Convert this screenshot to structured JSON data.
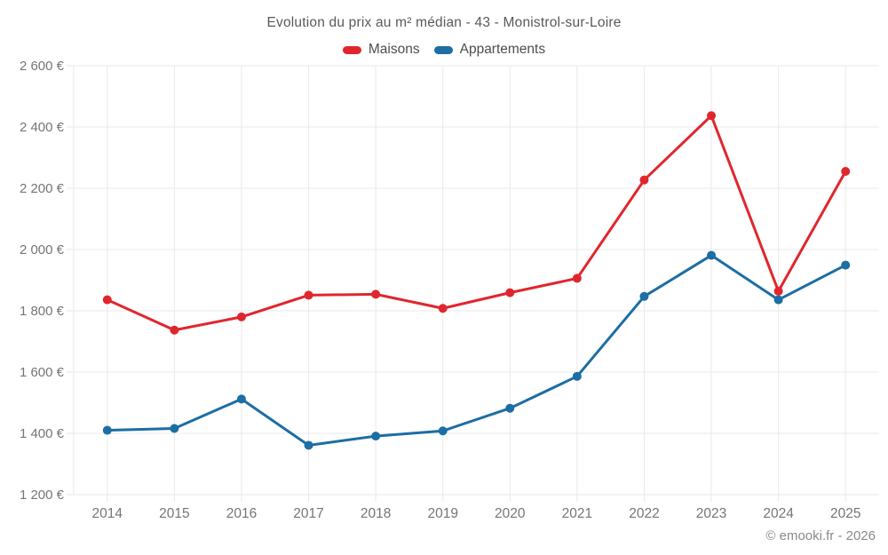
{
  "header": {
    "title": "Evolution du prix au m² médian - 43 - Monistrol-sur-Loire"
  },
  "footer": {
    "credit": "© emooki.fr - 2026"
  },
  "colors": {
    "background": "#ffffff",
    "grid": "#e9e9e9",
    "axis_text": "#757575",
    "title_text": "#595959",
    "legend_text": "#4d4d4d",
    "maisons_red": "#e0262d",
    "appartements_blue": "#1c6ea4"
  },
  "chart_data": {
    "type": "line",
    "title": "Evolution du prix au m² médian - 43 - Monistrol-sur-Loire",
    "categories": [
      "2014",
      "2015",
      "2016",
      "2017",
      "2018",
      "2019",
      "2020",
      "2021",
      "2022",
      "2023",
      "2024",
      "2025"
    ],
    "series": [
      {
        "name": "Maisons",
        "color": "#e0262d",
        "values": [
          1836,
          1737,
          1780,
          1851,
          1854,
          1808,
          1859,
          1906,
          2227,
          2437,
          1864,
          2255
        ]
      },
      {
        "name": "Appartements",
        "color": "#1c6ea4",
        "values": [
          1410,
          1416,
          1512,
          1361,
          1391,
          1408,
          1482,
          1586,
          1847,
          1981,
          1836,
          1949
        ]
      }
    ],
    "xlabel": "",
    "ylabel": "",
    "ylim": [
      1200,
      2600
    ],
    "y_ticks": [
      1200,
      1400,
      1600,
      1800,
      2000,
      2200,
      2400,
      2600
    ],
    "y_tick_labels": [
      "1 200 €",
      "1 400 €",
      "1 600 €",
      "1 800 €",
      "2 000 €",
      "2 200 €",
      "2 400 €",
      "2 600 €"
    ],
    "currency_suffix": " €",
    "grid": true,
    "legend_position": "top"
  }
}
